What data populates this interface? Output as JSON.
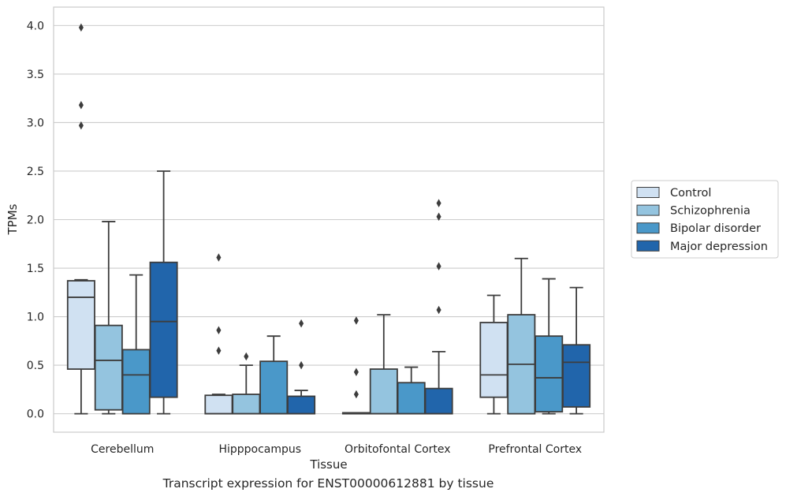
{
  "caption": "Transcript expression for ENST00000612881 by tissue",
  "chart_data": {
    "type": "box",
    "xlabel": "Tissue",
    "ylabel": "TPMs",
    "ylim": [
      -0.19,
      4.19
    ],
    "yticks": [
      "0.0",
      "0.5",
      "1.0",
      "1.5",
      "2.0",
      "2.5",
      "3.0",
      "3.5",
      "4.0"
    ],
    "grid": "horizontal",
    "legend_position": "right",
    "categories": [
      "Cerebellum",
      "Hipppocampus",
      "Orbitofontal Cortex",
      "Prefrontal Cortex"
    ],
    "series": [
      {
        "name": "Control",
        "color": "#d0e1f2",
        "boxes": [
          {
            "whislo": 0.0,
            "q1": 0.46,
            "med": 1.2,
            "q3": 1.37,
            "whishi": 1.38,
            "fliers": []
          },
          {
            "whislo": 0.0,
            "q1": 0.0,
            "med": 0.0,
            "q3": 0.19,
            "whishi": 0.2,
            "fliers": []
          },
          {
            "whislo": 0.0,
            "q1": 0.0,
            "med": 0.0,
            "q3": 0.01,
            "whishi": 0.01,
            "fliers": []
          },
          {
            "whislo": 0.0,
            "q1": 0.17,
            "med": 0.4,
            "q3": 0.94,
            "whishi": 1.22,
            "fliers": []
          }
        ]
      },
      {
        "name": "Schizophrenia",
        "color": "#94c4df",
        "boxes": [
          {
            "whislo": 0.0,
            "q1": 0.04,
            "med": 0.55,
            "q3": 0.91,
            "whishi": 1.98,
            "fliers": []
          },
          {
            "whislo": 0.0,
            "q1": 0.0,
            "med": 0.0,
            "q3": 0.2,
            "whishi": 0.5,
            "fliers": [
              0.59
            ]
          },
          {
            "whislo": 0.0,
            "q1": 0.0,
            "med": 0.0,
            "q3": 0.46,
            "whishi": 1.02,
            "fliers": []
          },
          {
            "whislo": 0.0,
            "q1": 0.0,
            "med": 0.51,
            "q3": 1.02,
            "whishi": 1.6,
            "fliers": []
          }
        ]
      },
      {
        "name": "Bipolar disorder",
        "color": "#4a98c9",
        "boxes": [
          {
            "whislo": 0.0,
            "q1": 0.0,
            "med": 0.4,
            "q3": 0.66,
            "whishi": 1.43,
            "fliers": []
          },
          {
            "whislo": 0.0,
            "q1": 0.0,
            "med": 0.0,
            "q3": 0.54,
            "whishi": 0.8,
            "fliers": []
          },
          {
            "whislo": 0.0,
            "q1": 0.0,
            "med": 0.0,
            "q3": 0.32,
            "whishi": 0.48,
            "fliers": []
          },
          {
            "whislo": 0.0,
            "q1": 0.02,
            "med": 0.37,
            "q3": 0.8,
            "whishi": 1.39,
            "fliers": []
          }
        ]
      },
      {
        "name": "Major depression",
        "color": "#2165ab",
        "boxes": [
          {
            "whislo": 0.0,
            "q1": 0.17,
            "med": 0.95,
            "q3": 1.56,
            "whishi": 2.5,
            "fliers": []
          },
          {
            "whislo": 0.0,
            "q1": 0.0,
            "med": 0.0,
            "q3": 0.18,
            "whishi": 0.24,
            "fliers": [
              0.5,
              0.93
            ]
          },
          {
            "whislo": 0.0,
            "q1": 0.0,
            "med": 0.0,
            "q3": 0.26,
            "whishi": 0.64,
            "fliers": [
              1.07,
              1.52,
              2.03,
              2.17
            ]
          },
          {
            "whislo": 0.0,
            "q1": 0.07,
            "med": 0.53,
            "q3": 0.71,
            "whishi": 1.3,
            "fliers": []
          }
        ]
      }
    ],
    "extra_fliers": [
      {
        "category": 0,
        "series": 0,
        "values": [
          2.97,
          3.18,
          3.98
        ]
      },
      {
        "category": 1,
        "series": 0,
        "values": [
          0.65,
          0.86,
          1.61
        ]
      },
      {
        "category": 2,
        "series": 0,
        "values": [
          0.2,
          0.43,
          0.96
        ]
      }
    ]
  }
}
